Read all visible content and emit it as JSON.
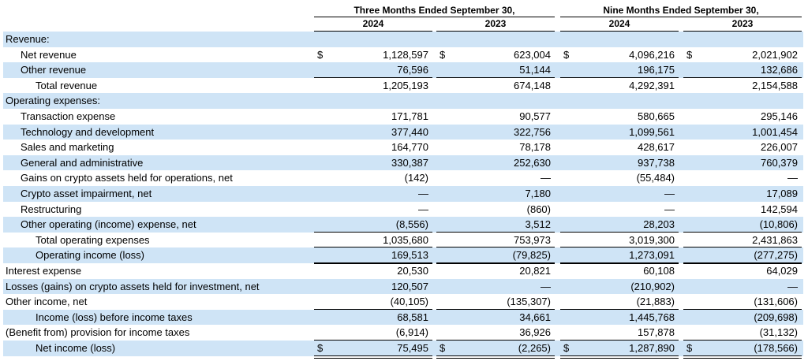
{
  "header": {
    "periods": [
      "Three Months Ended September 30,",
      "Nine Months Ended September 30,"
    ],
    "years": [
      "2024",
      "2023",
      "2024",
      "2023"
    ]
  },
  "currency_symbol": "$",
  "table": {
    "rows": [
      [
        "Revenue:",
        "",
        "",
        "",
        ""
      ],
      [
        "Net revenue",
        "1,128,597",
        "623,004",
        "4,096,216",
        "2,021,902"
      ],
      [
        "Other revenue",
        "76,596",
        "51,144",
        "196,175",
        "132,686"
      ],
      [
        "Total revenue",
        "1,205,193",
        "674,148",
        "4,292,391",
        "2,154,588"
      ],
      [
        "Operating expenses:",
        "",
        "",
        "",
        ""
      ],
      [
        "Transaction expense",
        "171,781",
        "90,577",
        "580,665",
        "295,146"
      ],
      [
        "Technology and development",
        "377,440",
        "322,756",
        "1,099,561",
        "1,001,454"
      ],
      [
        "Sales and marketing",
        "164,770",
        "78,178",
        "428,617",
        "226,007"
      ],
      [
        "General and administrative",
        "330,387",
        "252,630",
        "937,738",
        "760,379"
      ],
      [
        "Gains on crypto assets held for operations, net",
        "(142)",
        "—",
        "(55,484)",
        "—"
      ],
      [
        "Crypto asset impairment, net",
        "—",
        "7,180",
        "—",
        "17,089"
      ],
      [
        "Restructuring",
        "—",
        "(860)",
        "—",
        "142,594"
      ],
      [
        "Other operating (income) expense, net",
        "(8,556)",
        "3,512",
        "28,203",
        "(10,806)"
      ],
      [
        "Total operating expenses",
        "1,035,680",
        "753,973",
        "3,019,300",
        "2,431,863"
      ],
      [
        "Operating income (loss)",
        "169,513",
        "(79,825)",
        "1,273,091",
        "(277,275)"
      ],
      [
        "Interest expense",
        "20,530",
        "20,821",
        "60,108",
        "64,029"
      ],
      [
        "Losses (gains) on crypto assets held for investment, net",
        "120,507",
        "—",
        "(210,902)",
        "—"
      ],
      [
        "Other income, net",
        "(40,105)",
        "(135,307)",
        "(21,883)",
        "(131,606)"
      ],
      [
        "Income (loss) before income taxes",
        "68,581",
        "34,661",
        "1,445,768",
        "(209,698)"
      ],
      [
        "(Benefit from) provision for income taxes",
        "(6,914)",
        "36,926",
        "157,878",
        "(31,132)"
      ],
      [
        "Net income (loss)",
        "75,495",
        "(2,265)",
        "1,287,890",
        "(178,566)"
      ]
    ]
  }
}
